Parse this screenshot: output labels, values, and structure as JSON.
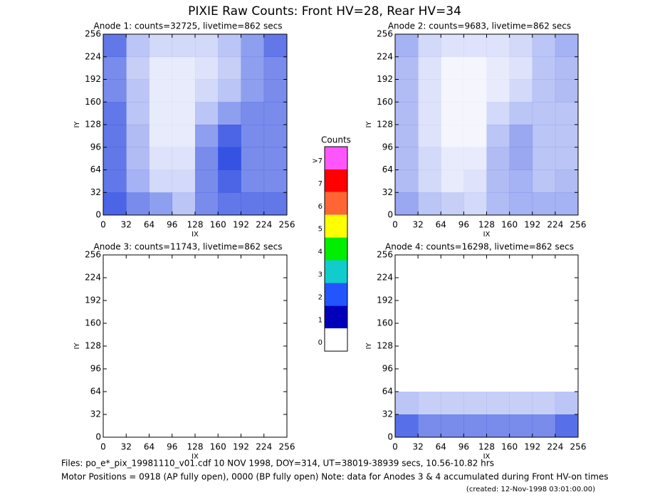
{
  "page_title": "PIXIE Raw Counts:  Front HV=28, Rear HV=34",
  "chart_data": [
    {
      "type": "heatmap",
      "title": "Anode 1: counts=32725, livetime=862 secs",
      "xlabel": "IX",
      "ylabel": "IY",
      "xlim": [
        0,
        256
      ],
      "ylim": [
        0,
        256
      ],
      "xticks": [
        0,
        32,
        64,
        96,
        128,
        160,
        192,
        224,
        256
      ],
      "yticks": [
        0,
        32,
        64,
        96,
        128,
        160,
        192,
        224,
        256
      ],
      "color": "#1f3fe0",
      "values": [
        [
          0.7,
          0.3,
          0.2,
          0.2,
          0.2,
          0.3,
          0.5,
          0.7
        ],
        [
          0.6,
          0.25,
          0.1,
          0.1,
          0.15,
          0.25,
          0.5,
          0.6
        ],
        [
          0.6,
          0.3,
          0.1,
          0.1,
          0.2,
          0.3,
          0.5,
          0.6
        ],
        [
          0.7,
          0.3,
          0.1,
          0.1,
          0.3,
          0.5,
          0.6,
          0.6
        ],
        [
          0.7,
          0.35,
          0.1,
          0.1,
          0.5,
          0.8,
          0.6,
          0.6
        ],
        [
          0.7,
          0.35,
          0.15,
          0.15,
          0.6,
          0.9,
          0.6,
          0.6
        ],
        [
          0.7,
          0.4,
          0.2,
          0.2,
          0.6,
          0.8,
          0.6,
          0.6
        ],
        [
          0.8,
          0.6,
          0.5,
          0.3,
          0.6,
          0.7,
          0.7,
          0.7
        ]
      ]
    },
    {
      "type": "heatmap",
      "title": "Anode 2: counts=9683, livetime=862 secs",
      "xlabel": "IX",
      "ylabel": "IY",
      "xlim": [
        0,
        256
      ],
      "ylim": [
        0,
        256
      ],
      "xticks": [
        0,
        32,
        64,
        96,
        128,
        160,
        192,
        224,
        256
      ],
      "yticks": [
        0,
        32,
        64,
        96,
        128,
        160,
        192,
        224,
        256
      ],
      "color": "#1f3fe0",
      "values": [
        [
          0.4,
          0.2,
          0.15,
          0.15,
          0.15,
          0.2,
          0.3,
          0.4
        ],
        [
          0.35,
          0.15,
          0.05,
          0.05,
          0.1,
          0.15,
          0.3,
          0.35
        ],
        [
          0.35,
          0.15,
          0.05,
          0.05,
          0.1,
          0.2,
          0.3,
          0.35
        ],
        [
          0.35,
          0.15,
          0.05,
          0.05,
          0.2,
          0.3,
          0.3,
          0.3
        ],
        [
          0.35,
          0.15,
          0.05,
          0.05,
          0.3,
          0.45,
          0.3,
          0.3
        ],
        [
          0.35,
          0.2,
          0.1,
          0.1,
          0.35,
          0.45,
          0.3,
          0.3
        ],
        [
          0.35,
          0.2,
          0.1,
          0.15,
          0.35,
          0.4,
          0.3,
          0.35
        ],
        [
          0.45,
          0.3,
          0.25,
          0.2,
          0.35,
          0.4,
          0.4,
          0.4
        ]
      ]
    },
    {
      "type": "heatmap",
      "title": "Anode 3: counts=11743, livetime=862 secs",
      "xlabel": "IX",
      "ylabel": "IY",
      "xlim": [
        0,
        256
      ],
      "ylim": [
        0,
        256
      ],
      "xticks": [
        0,
        32,
        64,
        96,
        128,
        160,
        192,
        224,
        256
      ],
      "yticks": [
        0,
        32,
        64,
        96,
        128,
        160,
        192,
        224,
        256
      ],
      "color": "#1f3fe0",
      "values": [
        [
          0,
          0,
          0,
          0,
          0,
          0,
          0,
          0
        ],
        [
          0,
          0,
          0,
          0,
          0,
          0,
          0,
          0
        ],
        [
          0,
          0,
          0,
          0,
          0,
          0,
          0,
          0
        ],
        [
          0,
          0,
          0,
          0,
          0,
          0,
          0,
          0
        ],
        [
          0,
          0,
          0,
          0,
          0,
          0,
          0,
          0
        ],
        [
          0,
          0,
          0,
          0,
          0,
          0,
          0,
          0
        ],
        [
          0,
          0,
          0,
          0,
          0,
          0,
          0,
          0
        ],
        [
          0,
          0,
          0,
          0,
          0,
          0,
          0,
          0
        ]
      ]
    },
    {
      "type": "heatmap",
      "title": "Anode 4: counts=16298, livetime=862 secs",
      "xlabel": "IX",
      "ylabel": "IY",
      "xlim": [
        0,
        256
      ],
      "ylim": [
        0,
        256
      ],
      "xticks": [
        0,
        32,
        64,
        96,
        128,
        160,
        192,
        224,
        256
      ],
      "yticks": [
        0,
        32,
        64,
        96,
        128,
        160,
        192,
        224,
        256
      ],
      "color": "#1f3fe0",
      "values": [
        [
          0,
          0,
          0,
          0,
          0,
          0,
          0,
          0
        ],
        [
          0,
          0,
          0,
          0,
          0,
          0,
          0,
          0
        ],
        [
          0,
          0,
          0,
          0,
          0,
          0,
          0,
          0
        ],
        [
          0,
          0,
          0,
          0,
          0,
          0,
          0,
          0
        ],
        [
          0,
          0,
          0,
          0,
          0,
          0,
          0,
          0
        ],
        [
          0,
          0,
          0,
          0,
          0,
          0,
          0,
          0
        ],
        [
          0.3,
          0.25,
          0.25,
          0.25,
          0.25,
          0.25,
          0.25,
          0.3
        ],
        [
          0.75,
          0.6,
          0.6,
          0.6,
          0.6,
          0.6,
          0.6,
          0.75
        ]
      ]
    }
  ],
  "colorbar": {
    "title": "Counts",
    "labels": [
      ">7",
      "7",
      "6",
      "5",
      "4",
      "3",
      "2",
      "1",
      "0"
    ],
    "colors": [
      "#ff55ff",
      "#ff0000",
      "#ff6633",
      "#ffff00",
      "#00ee00",
      "#11cccc",
      "#2255ff",
      "#0000bb",
      "#ffffff"
    ]
  },
  "footer": [
    "Files: po_e*_pix_19981110_v01.cdf     10 NOV 1998, DOY=314, UT=38019-38939 secs, 10.56-10.82 hrs",
    "Motor Positions = 0918 (AP fully open), 0000 (BP fully open)    Note: data for Anodes 3 & 4 accumulated during Front HV-on times",
    "(created: 12-Nov-1998 03:01:00.00)"
  ]
}
